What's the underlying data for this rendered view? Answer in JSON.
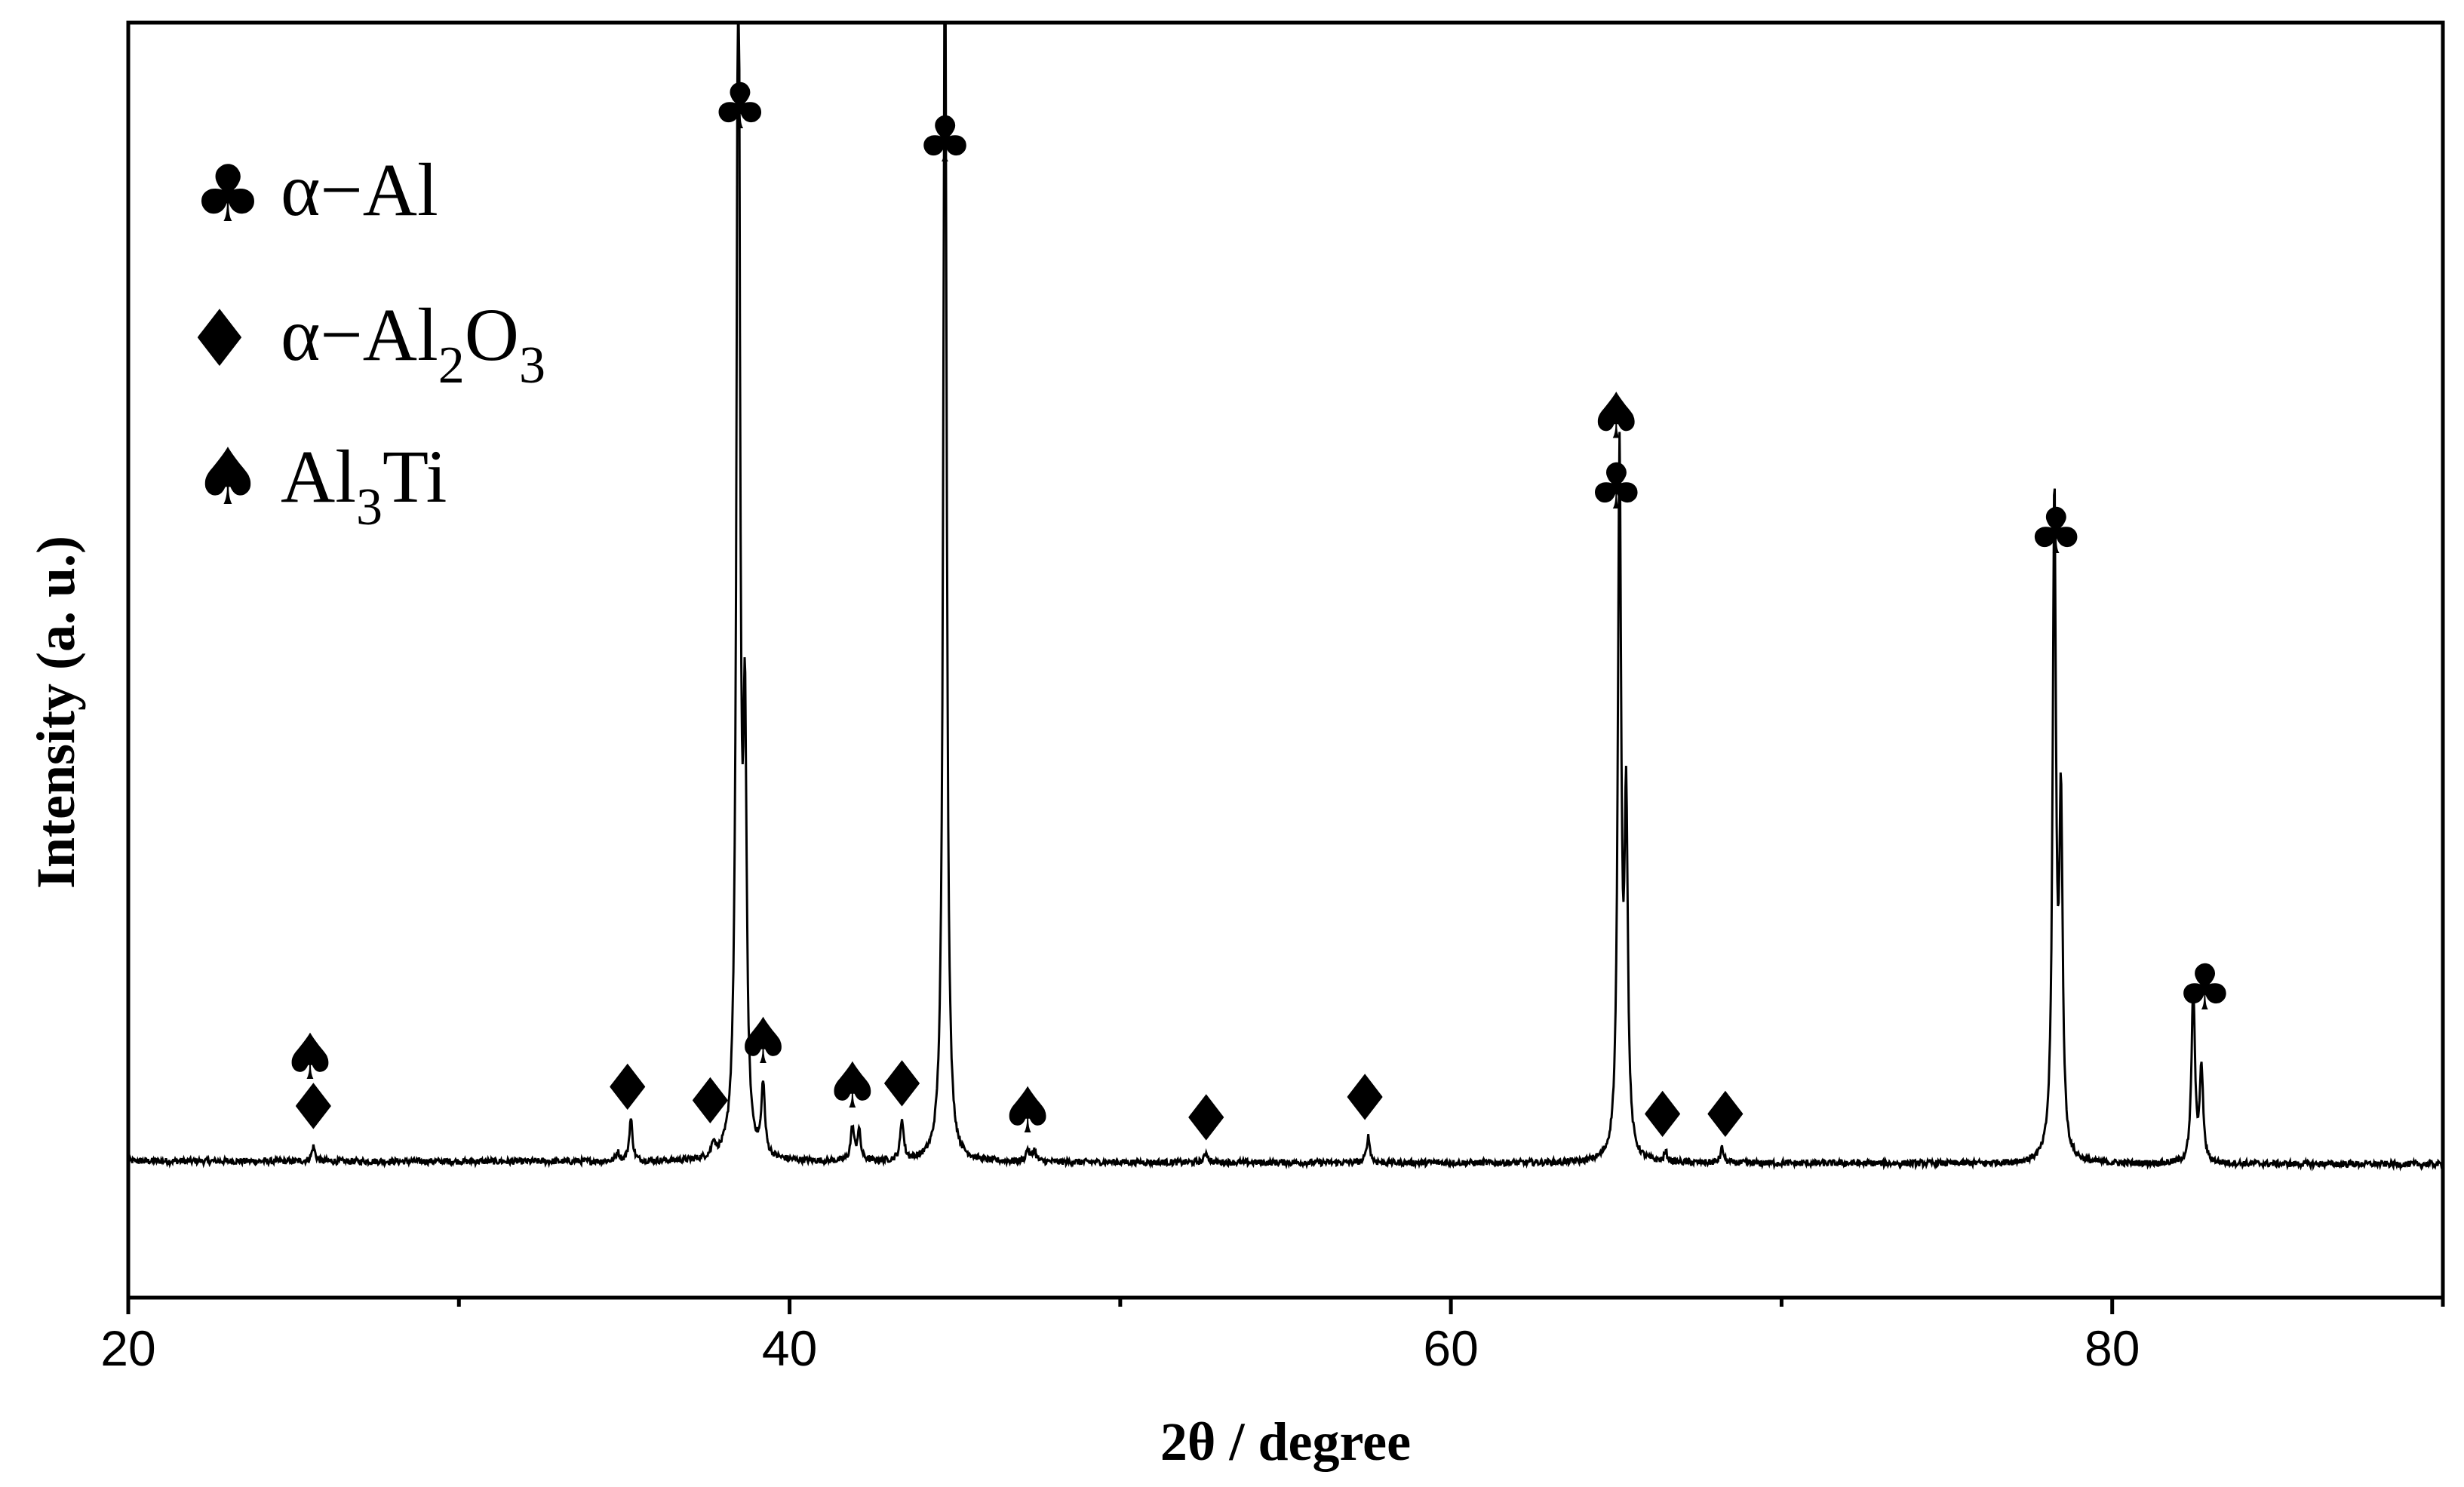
{
  "chart_data": {
    "type": "line",
    "title": "",
    "xlabel": "2θ / degree",
    "ylabel": "Intensity (a. u.)",
    "xlim": [
      20,
      90
    ],
    "ylim": [
      -12,
      100
    ],
    "x_ticks": [
      20,
      40,
      60,
      80
    ],
    "x_tick_labels": [
      "20",
      "40",
      "60",
      "80"
    ],
    "minor_ticks": [
      30,
      50,
      70,
      90
    ],
    "grid": false,
    "legend_position": "top-left",
    "legend": [
      {
        "key": "alal",
        "symbol": "♣",
        "label": "α−Al"
      },
      {
        "key": "al2o3",
        "symbol": "♦",
        "label": "α−Al",
        "sub1": "2",
        "mid": "O",
        "sub2": "3"
      },
      {
        "key": "al3ti",
        "symbol": "♠",
        "label": "Al",
        "sub1": "3",
        "mid": "Ti"
      }
    ],
    "baseline": 0,
    "peaks": [
      {
        "x": 25.6,
        "h": 1.3
      },
      {
        "x": 34.8,
        "h": 0.8
      },
      {
        "x": 35.2,
        "h": 3.7
      },
      {
        "x": 37.7,
        "h": 1.3
      },
      {
        "x": 38.45,
        "h": 115
      },
      {
        "x": 38.65,
        "h": 35
      },
      {
        "x": 39.2,
        "h": 6.2
      },
      {
        "x": 41.9,
        "h": 3.0
      },
      {
        "x": 42.1,
        "h": 2.6
      },
      {
        "x": 43.4,
        "h": 3.6
      },
      {
        "x": 44.7,
        "h": 112
      },
      {
        "x": 47.2,
        "h": 1.1
      },
      {
        "x": 47.4,
        "h": 1.0
      },
      {
        "x": 52.6,
        "h": 0.9
      },
      {
        "x": 57.5,
        "h": 2.3
      },
      {
        "x": 65.1,
        "h": 62
      },
      {
        "x": 65.3,
        "h": 30
      },
      {
        "x": 66.5,
        "h": 0.8
      },
      {
        "x": 68.2,
        "h": 1.3
      },
      {
        "x": 78.25,
        "h": 58
      },
      {
        "x": 78.45,
        "h": 30
      },
      {
        "x": 82.45,
        "h": 15.5
      },
      {
        "x": 82.7,
        "h": 8.2
      }
    ],
    "annotations": [
      {
        "symbol": "♠",
        "x": 25.5,
        "y": 9.2
      },
      {
        "symbol": "♦",
        "x": 25.6,
        "y": 4.8
      },
      {
        "symbol": "♦",
        "x": 35.1,
        "y": 6.5
      },
      {
        "symbol": "♦",
        "x": 37.6,
        "y": 5.3
      },
      {
        "symbol": "♣",
        "x": 38.5,
        "y": 92.7
      },
      {
        "symbol": "♠",
        "x": 39.2,
        "y": 10.6
      },
      {
        "symbol": "♠",
        "x": 41.9,
        "y": 6.7
      },
      {
        "symbol": "♦",
        "x": 43.4,
        "y": 6.8
      },
      {
        "symbol": "♣",
        "x": 44.7,
        "y": 89.8
      },
      {
        "symbol": "♠",
        "x": 47.2,
        "y": 4.5
      },
      {
        "symbol": "♦",
        "x": 52.6,
        "y": 3.8
      },
      {
        "symbol": "♦",
        "x": 57.4,
        "y": 5.6
      },
      {
        "symbol": "♠",
        "x": 65.0,
        "y": 65.5
      },
      {
        "symbol": "♣",
        "x": 65.0,
        "y": 59.3
      },
      {
        "symbol": "♦",
        "x": 66.4,
        "y": 4.1
      },
      {
        "symbol": "♦",
        "x": 68.3,
        "y": 4.1
      },
      {
        "symbol": "♣",
        "x": 78.3,
        "y": 55.4
      },
      {
        "symbol": "♣",
        "x": 82.8,
        "y": 15.3
      }
    ]
  }
}
